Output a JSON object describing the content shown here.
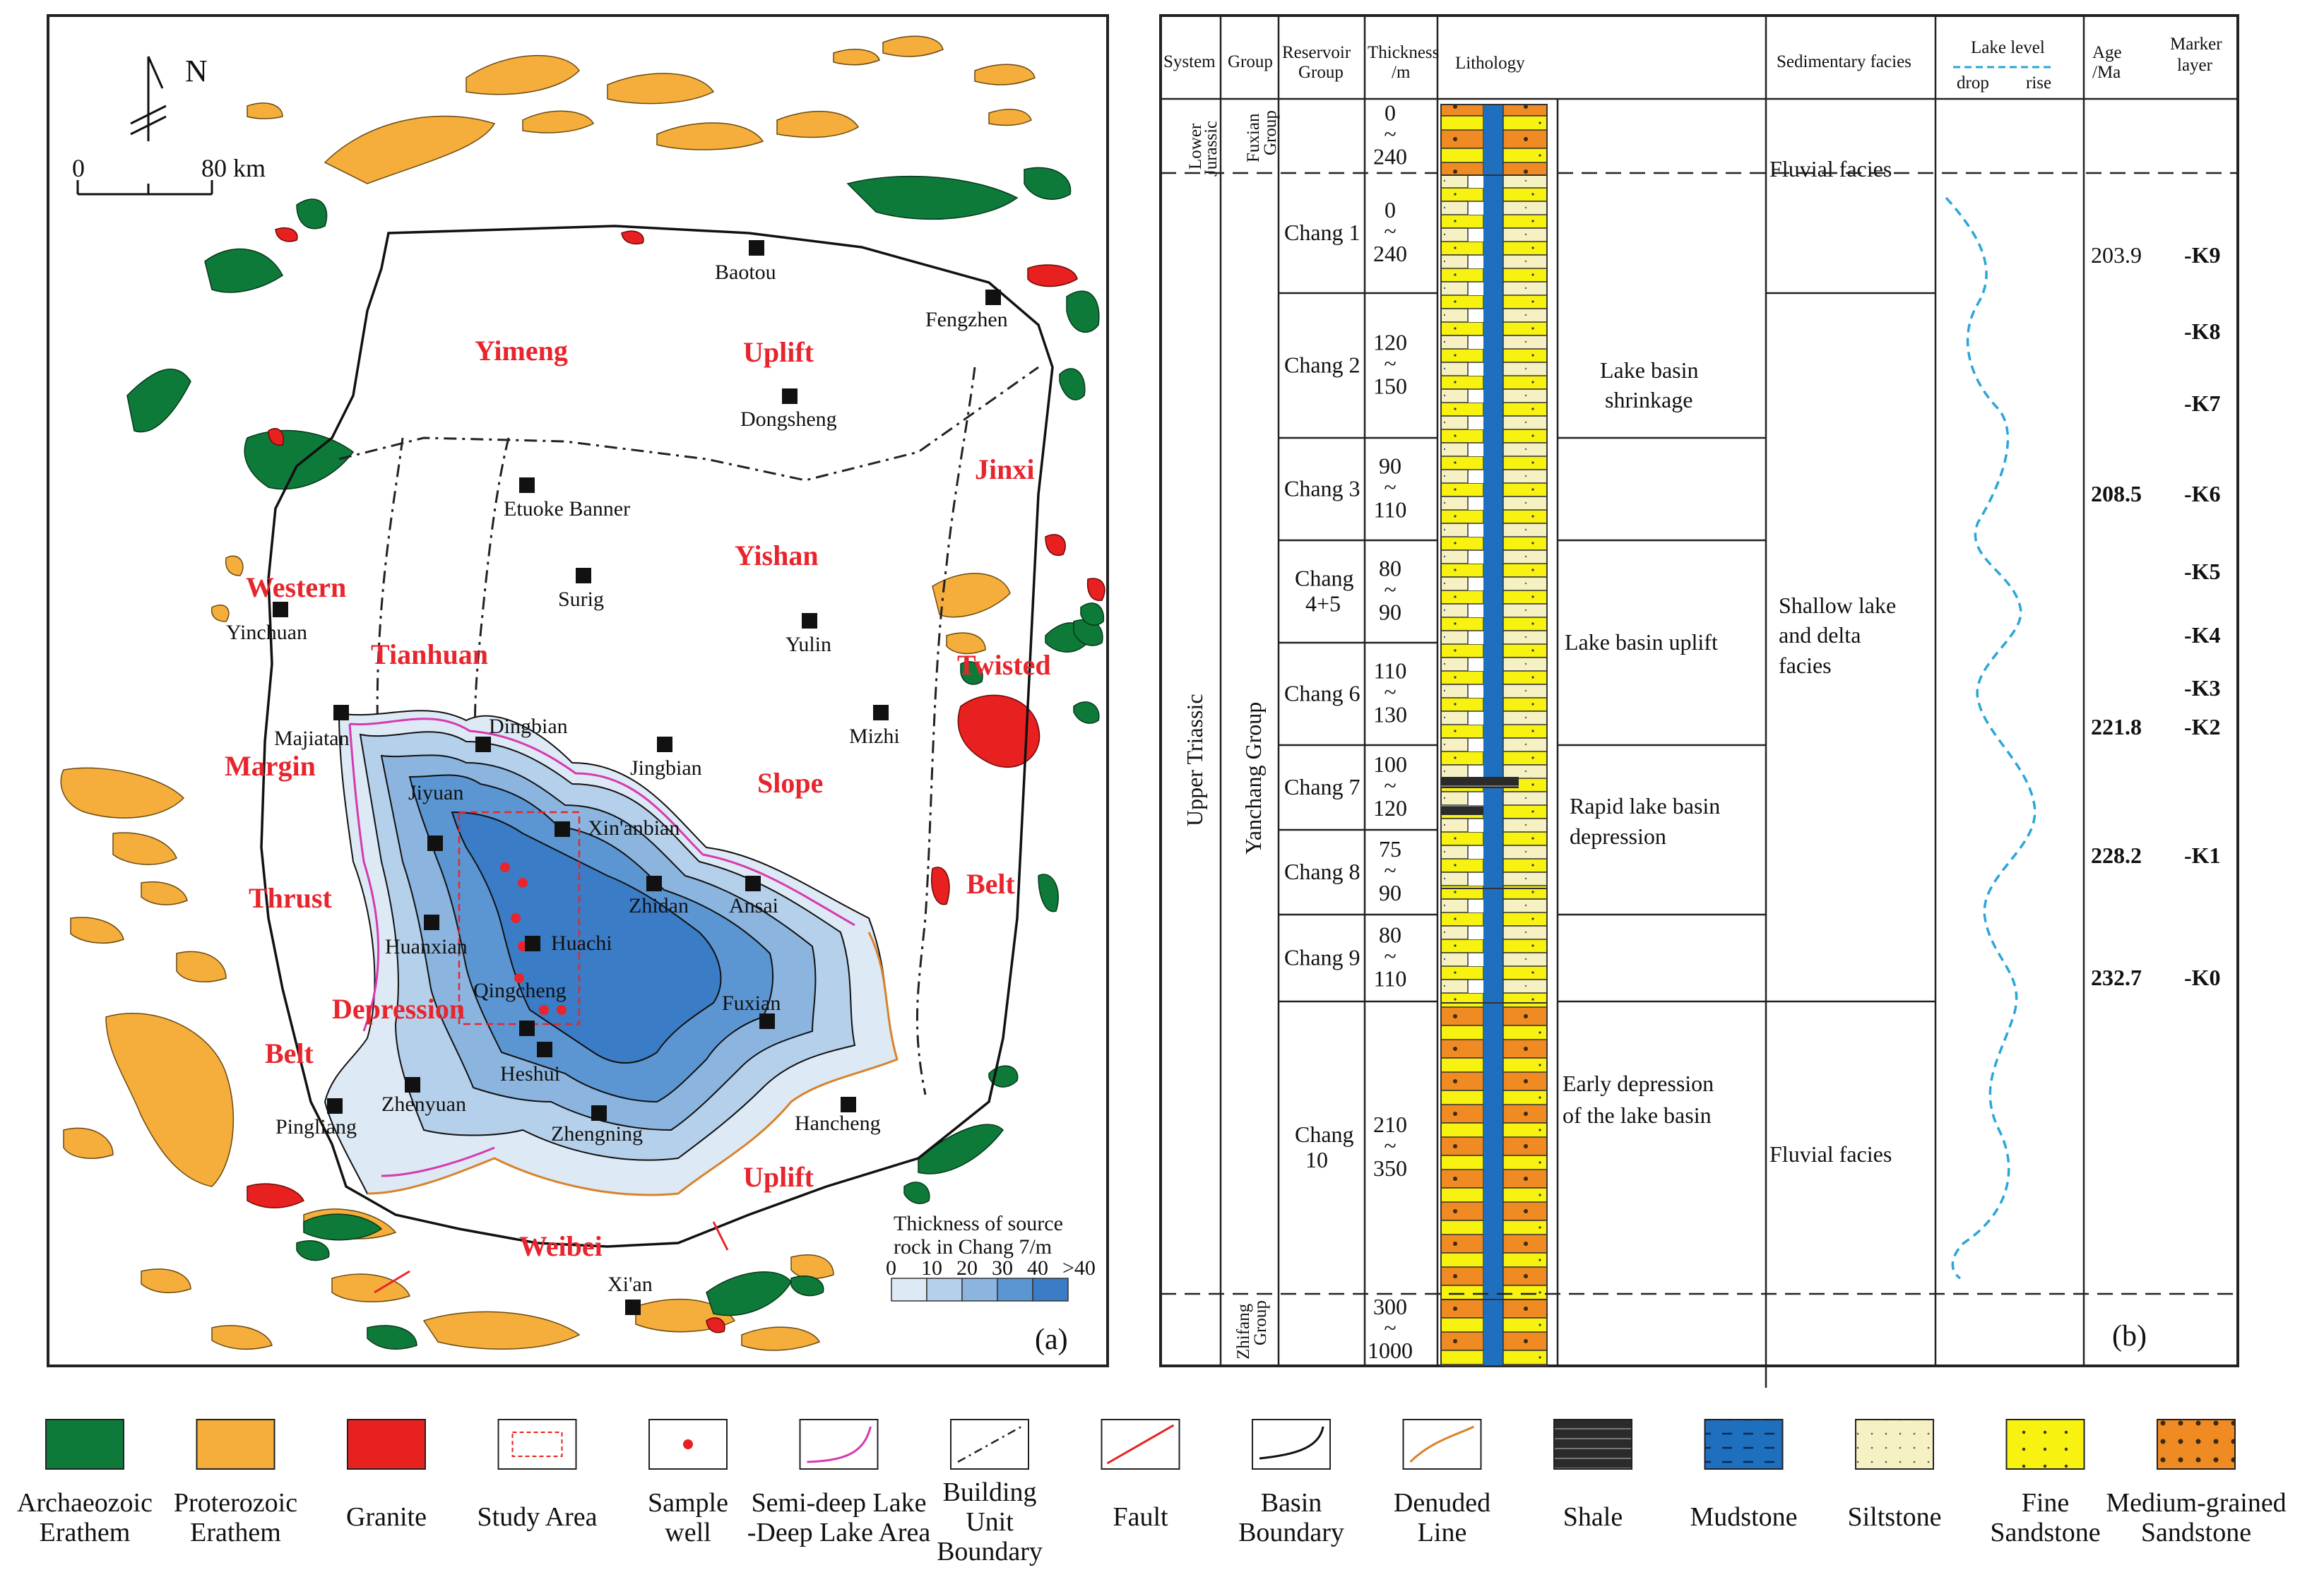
{
  "panel_a": {
    "north_label": "N",
    "scale": {
      "zero": "0",
      "distance": "80 km"
    },
    "panel_label": "(a)",
    "regions": {
      "yimeng": "Yimeng",
      "uplift_n": "Uplift",
      "jinxi": "Jinxi",
      "yishan": "Yishan",
      "western": "Western",
      "tianhuan": "Tianhuan",
      "twisted": "Twisted",
      "margin": "Margin",
      "slope": "Slope",
      "thrust": "Thrust",
      "belt_e": "Belt",
      "depression": "Depression",
      "belt_w": "Belt",
      "uplift_s": "Uplift",
      "weibei": "Weibei"
    },
    "cities": {
      "baotou": "Baotou",
      "fengzhen": "Fengzhen",
      "dongsheng": "Dongsheng",
      "etuoke": "Etuoke Banner",
      "surig": "Surig",
      "yinchuan": "Yinchuan",
      "yulin": "Yulin",
      "mizhi": "Mizhi",
      "majiatan": "Majiatan",
      "dingbian": "Dingbian",
      "jingbian": "Jingbian",
      "jiyuan": "Jiyuan",
      "xinanbian": "Xin'anbian",
      "zhidan": "Zhidan",
      "ansai": "Ansai",
      "huanxian": "Huanxian",
      "huachi": "Huachi",
      "qingcheng": "Qingcheng",
      "fuxian": "Fuxian",
      "heshui": "Heshui",
      "pingliang": "Pingliang",
      "zhenyuan": "Zhenyuan",
      "zhengning": "Zhengning",
      "hancheng": "Hancheng",
      "xian": "Xi'an"
    },
    "thickness_legend": {
      "title_line1": "Thickness of source",
      "title_line2": "rock in Chang 7/m",
      "ticks": [
        "0",
        "10",
        "20",
        "30",
        "40",
        ">40"
      ],
      "colors": [
        "#dde9f5",
        "#b5d0ea",
        "#8bb5df",
        "#5c96d2",
        "#3a7cc6"
      ]
    }
  },
  "panel_b": {
    "panel_label": "(b)",
    "headers": {
      "system": "System",
      "group": "Group",
      "reservoir_1": "Reservoir",
      "reservoir_2": "Group",
      "thickness_1": "Thickness",
      "thickness_2": "/m",
      "lithology": "Lithology",
      "facies": "Sedimentary facies",
      "lake_level": "Lake level",
      "drop": "drop",
      "rise": "rise",
      "age_1": "Age",
      "age_2": "/Ma",
      "marker_1": "Marker",
      "marker_2": "layer"
    },
    "systems": {
      "lower_1": "Lower",
      "lower_2": "Jurassic",
      "upper": "Upper  Triassic"
    },
    "groups": {
      "fuxian_1": "Fuxian",
      "fuxian_2": "Group",
      "yanchang": "Yanchang  Group",
      "zhifang_1": "Zhifang",
      "zhifang_2": "Group"
    },
    "rows": [
      {
        "name": "",
        "top": "0",
        "sep": "~",
        "bottom": "240"
      },
      {
        "name": "Chang 1",
        "top": "0",
        "sep": "~",
        "bottom": "240"
      },
      {
        "name": "Chang 2",
        "top": "120",
        "sep": "~",
        "bottom": "150"
      },
      {
        "name": "Chang 3",
        "top": "90",
        "sep": "~",
        "bottom": "110"
      },
      {
        "name": "Chang",
        "name2": "4+5",
        "top": "80",
        "sep": "~",
        "bottom": "90"
      },
      {
        "name": "Chang 6",
        "top": "110",
        "sep": "~",
        "bottom": "130"
      },
      {
        "name": "Chang 7",
        "top": "100",
        "sep": "~",
        "bottom": "120"
      },
      {
        "name": "Chang 8",
        "top": "75",
        "sep": "~",
        "bottom": "90"
      },
      {
        "name": "Chang 9",
        "top": "80",
        "sep": "~",
        "bottom": "110"
      },
      {
        "name": "Chang",
        "name2": "10",
        "top": "210",
        "sep": "~",
        "bottom": "350"
      },
      {
        "name": "",
        "top": "300",
        "sep": "~",
        "bottom": "1000"
      }
    ],
    "stages": {
      "shrink_1": "Lake basin",
      "shrink_2": "shrinkage",
      "uplift": "Lake basin uplift",
      "rapid_1": "Rapid lake basin",
      "rapid_2": "depression",
      "early_1": "Early depression",
      "early_2": "of the lake basin"
    },
    "facies": {
      "fluvial_top": "Fluvial facies",
      "shallow_1": "Shallow lake",
      "shallow_2": "and delta",
      "shallow_3": "facies",
      "fluvial_bottom": "Fluvial facies"
    },
    "ages": [
      "203.9",
      "208.5",
      "221.8",
      "228.2",
      "232.7"
    ],
    "markers": [
      "K9",
      "K8",
      "K7",
      "K6",
      "K5",
      "K4",
      "K3",
      "K2",
      "K1",
      "K0"
    ]
  },
  "legend": [
    {
      "label1": "Archaeozoic",
      "label2": "Erathem"
    },
    {
      "label1": "Proterozoic",
      "label2": "Erathem"
    },
    {
      "label1": "Granite",
      "label2": ""
    },
    {
      "label1": "Study Area",
      "label2": ""
    },
    {
      "label1": "Sample",
      "label2": "well"
    },
    {
      "label1": "Semi-deep Lake",
      "label2": "-Deep Lake Area"
    },
    {
      "label1": "Building",
      "label2": "Unit",
      "label3": "Boundary"
    },
    {
      "label1": "Fault",
      "label2": ""
    },
    {
      "label1": "Basin",
      "label2": "Boundary"
    },
    {
      "label1": "Denuded",
      "label2": "Line"
    },
    {
      "label1": "Shale",
      "label2": ""
    },
    {
      "label1": "Mudstone",
      "label2": ""
    },
    {
      "label1": "Siltstone",
      "label2": ""
    },
    {
      "label1": "Fine",
      "label2": "Sandstone"
    },
    {
      "label1": "Medium-grained",
      "label2": "Sandstone"
    }
  ],
  "colors": {
    "archaeozoic": "#0e7a3a",
    "proterozoic": "#f5ad3c",
    "granite": "#e8201f",
    "fine_sand": "#f7f20f",
    "medium_sand": "#f08a22",
    "mudstone": "#1f6fbf",
    "siltstone": "#f6f1c2",
    "shale": "#2b2b2b",
    "region_label": "#e8252d"
  }
}
